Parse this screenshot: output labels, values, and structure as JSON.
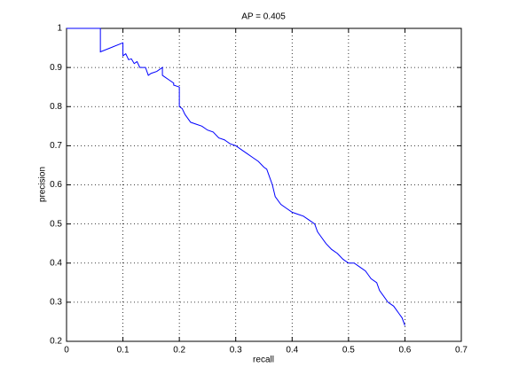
{
  "chart_data": {
    "type": "line",
    "title": "AP = 0.405",
    "x_label": "recall",
    "y_label": "precision",
    "x": [
      0,
      0.06,
      0.06,
      0.1,
      0.1,
      0.105,
      0.11,
      0.115,
      0.12,
      0.125,
      0.13,
      0.14,
      0.145,
      0.15,
      0.16,
      0.17,
      0.17,
      0.175,
      0.18,
      0.19,
      0.19,
      0.2,
      0.2,
      0.205,
      0.21,
      0.22,
      0.23,
      0.24,
      0.25,
      0.26,
      0.27,
      0.28,
      0.29,
      0.3,
      0.31,
      0.32,
      0.33,
      0.34,
      0.35,
      0.355,
      0.36,
      0.365,
      0.37,
      0.38,
      0.39,
      0.4,
      0.41,
      0.42,
      0.43,
      0.44,
      0.445,
      0.45,
      0.46,
      0.47,
      0.48,
      0.49,
      0.5,
      0.51,
      0.52,
      0.53,
      0.535,
      0.54,
      0.55,
      0.555,
      0.56,
      0.57,
      0.58,
      0.585,
      0.59,
      0.595,
      0.6
    ],
    "values": [
      1,
      1,
      0.94,
      0.963,
      0.93,
      0.935,
      0.92,
      0.922,
      0.91,
      0.915,
      0.9,
      0.9,
      0.88,
      0.885,
      0.89,
      0.9,
      0.88,
      0.875,
      0.87,
      0.86,
      0.855,
      0.85,
      0.8,
      0.795,
      0.78,
      0.76,
      0.755,
      0.75,
      0.74,
      0.735,
      0.72,
      0.715,
      0.705,
      0.7,
      0.69,
      0.68,
      0.67,
      0.66,
      0.645,
      0.64,
      0.62,
      0.6,
      0.57,
      0.55,
      0.54,
      0.53,
      0.525,
      0.52,
      0.51,
      0.5,
      0.48,
      0.47,
      0.45,
      0.435,
      0.425,
      0.41,
      0.4,
      0.4,
      0.39,
      0.38,
      0.37,
      0.36,
      0.35,
      0.33,
      0.32,
      0.3,
      0.29,
      0.28,
      0.27,
      0.26,
      0.24
    ],
    "color": "#0000ff",
    "xlim": [
      0,
      0.7
    ],
    "xticks": [
      0,
      0.1,
      0.2,
      0.3,
      0.4,
      0.5,
      0.6,
      0.7
    ],
    "ylim": [
      0.2,
      1
    ],
    "yticks": [
      0.2,
      0.3,
      0.4,
      0.5,
      0.6,
      0.7,
      0.8,
      0.9,
      1
    ],
    "grid": true
  }
}
